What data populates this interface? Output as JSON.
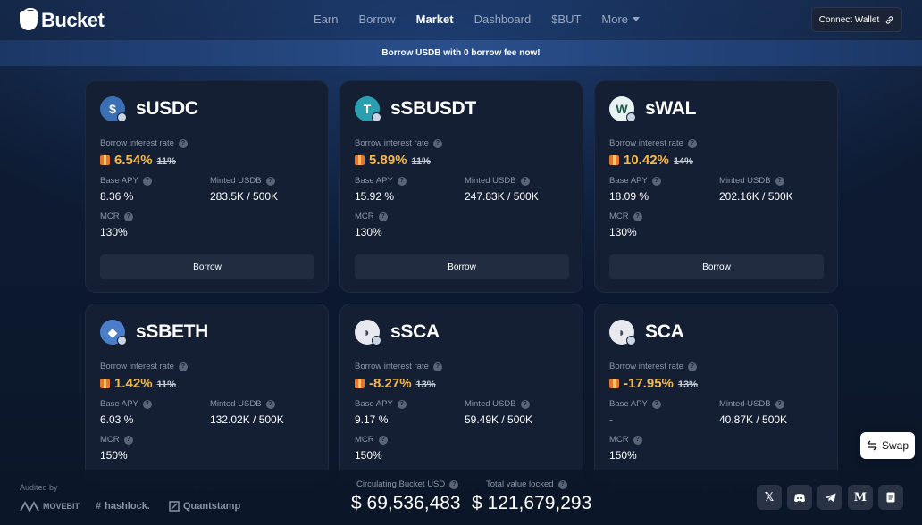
{
  "header": {
    "logo_text": "Bucket",
    "nav": [
      "Earn",
      "Borrow",
      "Market",
      "Dashboard",
      "$BUT",
      "More"
    ],
    "active_nav": "Market",
    "connect_label": "Connect Wallet"
  },
  "banner": {
    "text": "Borrow USDB with 0 borrow fee now!"
  },
  "labels": {
    "borrow_rate": "Borrow interest rate",
    "base_apy": "Base APY",
    "minted": "Minted USDB",
    "mcr": "MCR",
    "borrow_button": "Borrow"
  },
  "colors": {
    "accent_rate": "#f4b84a",
    "card_bg": "#151f33",
    "button_bg": "#222c40"
  },
  "cards": [
    {
      "name": "sUSDC",
      "icon": "susdc-icon",
      "rate": "6.54%",
      "rate_old": "11%",
      "base_apy": "8.36 %",
      "minted": "283.5K / 500K",
      "mcr": "130%"
    },
    {
      "name": "sSBUSDT",
      "icon": "ssbusdt-icon",
      "rate": "5.89%",
      "rate_old": "11%",
      "base_apy": "15.92 %",
      "minted": "247.83K / 500K",
      "mcr": "130%"
    },
    {
      "name": "sWAL",
      "icon": "swal-icon",
      "rate": "10.42%",
      "rate_old": "14%",
      "base_apy": "18.09 %",
      "minted": "202.16K / 500K",
      "mcr": "130%"
    },
    {
      "name": "sSBETH",
      "icon": "ssbeth-icon",
      "rate": "1.42%",
      "rate_old": "11%",
      "base_apy": "6.03 %",
      "minted": "132.02K / 500K",
      "mcr": "150%"
    },
    {
      "name": "sSCA",
      "icon": "ssca-icon",
      "rate": "-8.27%",
      "rate_old": "13%",
      "base_apy": "9.17 %",
      "minted": "59.49K / 500K",
      "mcr": "150%"
    },
    {
      "name": "SCA",
      "icon": "sca-icon",
      "rate": "-17.95%",
      "rate_old": "13%",
      "base_apy": "-",
      "minted": "40.87K / 500K",
      "mcr": "150%"
    }
  ],
  "footer": {
    "audited_by": "Audited by",
    "auditors": [
      "MOVEBIT",
      "hashlock.",
      "Quantstamp"
    ],
    "circulating_label": "Circulating Bucket USD",
    "circulating_value": "$ 69,536,483",
    "tvl_label": "Total value locked",
    "tvl_value": "$ 121,679,293",
    "socials": [
      "x-icon",
      "discord-icon",
      "telegram-icon",
      "medium-icon",
      "docs-icon"
    ]
  },
  "swap": {
    "label": "Swap"
  }
}
